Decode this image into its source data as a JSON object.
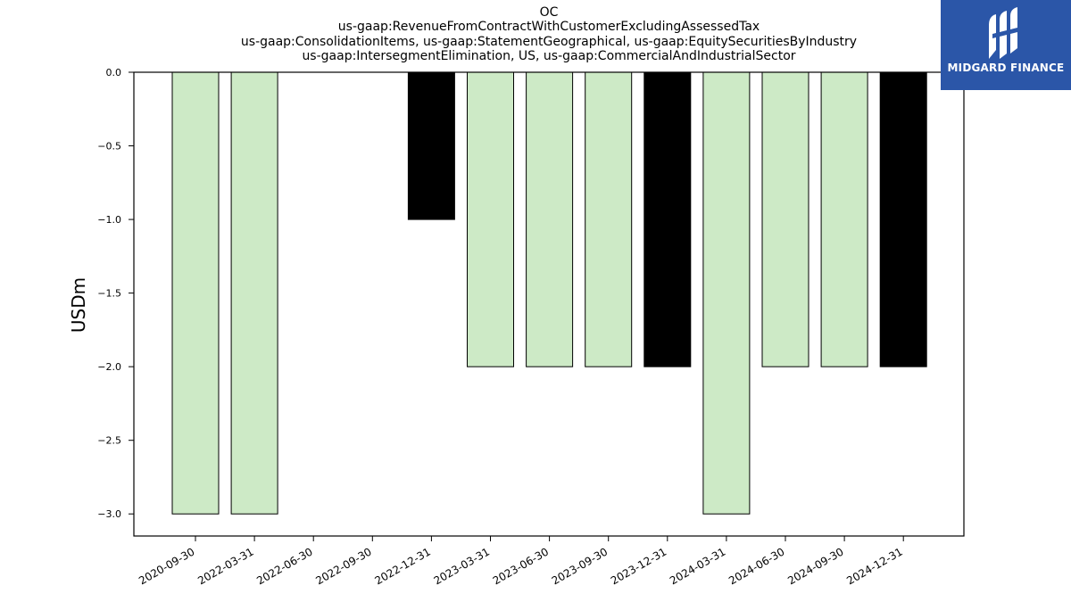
{
  "title_lines": [
    "OC",
    "us-gaap:RevenueFromContractWithCustomerExcludingAssessedTax",
    "us-gaap:ConsolidationItems, us-gaap:StatementGeographical, us-gaap:EquitySecuritiesByIndustry",
    "us-gaap:IntersegmentElimination, US, us-gaap:CommercialAndIndustrialSector"
  ],
  "logo": {
    "text": "MIDGARD FINANCE",
    "color": "#2b56a8"
  },
  "chart_data": {
    "type": "bar",
    "ylabel": "USDm",
    "xlabel": "",
    "ylim": [
      -3.15,
      0
    ],
    "yticks": [
      0.0,
      -0.5,
      -1.0,
      -1.5,
      -2.0,
      -2.5,
      -3.0
    ],
    "ytick_labels": [
      "0.0",
      "−0.5",
      "−1.0",
      "−1.5",
      "−2.0",
      "−2.5",
      "−3.0"
    ],
    "categories": [
      "2020-09-30",
      "2022-03-31",
      "2022-06-30",
      "2022-09-30",
      "2022-12-31",
      "2023-03-31",
      "2023-06-30",
      "2023-09-30",
      "2023-12-31",
      "2024-03-31",
      "2024-06-30",
      "2024-09-30",
      "2024-12-31"
    ],
    "values": [
      -3.0,
      -3.0,
      null,
      null,
      -1.0,
      -2.0,
      -2.0,
      -2.0,
      -2.0,
      -3.0,
      -2.0,
      -2.0,
      -2.0
    ],
    "bar_colors": [
      "#cdeac6",
      "#cdeac6",
      null,
      null,
      "#000000",
      "#cdeac6",
      "#cdeac6",
      "#cdeac6",
      "#000000",
      "#cdeac6",
      "#cdeac6",
      "#cdeac6",
      "#000000"
    ],
    "grid": false
  }
}
